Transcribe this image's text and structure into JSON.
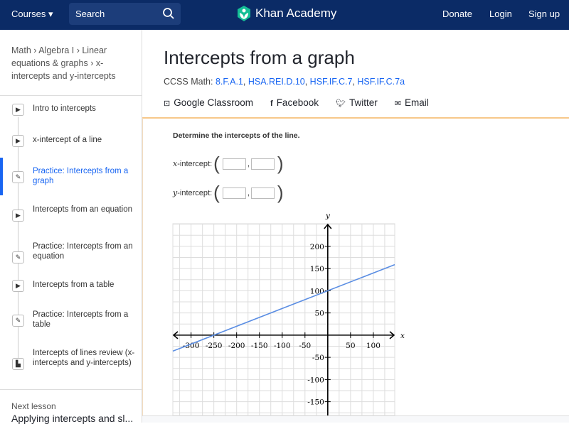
{
  "header": {
    "courses": "Courses",
    "search_placeholder": "Search",
    "logo": "Khan Academy",
    "donate": "Donate",
    "login": "Login",
    "signup": "Sign up",
    "brand_color": "#0b2b66",
    "logo_color": "#14bf96"
  },
  "breadcrumb": "Math › Algebra I › Linear equations & graphs › x-intercepts and y-intercepts",
  "sidebar": {
    "items": [
      {
        "label": "Intro to intercepts",
        "icon": "play-icon"
      },
      {
        "label": "x-intercept of a line",
        "icon": "play-icon"
      },
      {
        "label": "Practice: Intercepts from a graph",
        "icon": "pencil-icon",
        "active": true
      },
      {
        "label": "Intercepts from an equation",
        "icon": "play-icon"
      },
      {
        "label": "Practice: Intercepts from an equation",
        "icon": "pencil-icon"
      },
      {
        "label": "Intercepts from a table",
        "icon": "play-icon"
      },
      {
        "label": "Practice: Intercepts from a table",
        "icon": "pencil-icon"
      },
      {
        "label": "Intercepts of lines review (x-intercepts and y-intercepts)",
        "icon": "article-icon"
      }
    ],
    "next_label": "Next lesson",
    "next_title": "Applying intercepts and sl..."
  },
  "main": {
    "title": "Intercepts from a graph",
    "ccss_label": "CCSS Math:",
    "ccss": [
      "8.F.A.1",
      "HSA.REI.D.10",
      "HSF.IF.C.7",
      "HSF.IF.C.7a"
    ],
    "share": [
      "Google Classroom",
      "Facebook",
      "Twitter",
      "Email"
    ]
  },
  "exercise": {
    "prompt": "Determine the intercepts of the line.",
    "x_label_var": "x",
    "x_label": "-intercept:",
    "y_label_var": "y",
    "y_label": "-intercept:"
  },
  "chart_data": {
    "type": "line",
    "xlabel": "x",
    "ylabel": "y",
    "xlim": [
      -340,
      147
    ],
    "ylim": [
      -181,
      251
    ],
    "grid": true,
    "grid_step": 25,
    "xticks": [
      -300,
      -250,
      -200,
      -150,
      -100,
      -50,
      50,
      100
    ],
    "yticks": [
      200,
      150,
      100,
      50,
      -50,
      -100,
      -150
    ],
    "series": [
      {
        "x": [
          -340,
          147
        ],
        "y": [
          -36,
          158.8
        ],
        "equation_slope": 0.4,
        "equation_intercept": 100,
        "color": "#5a8de3"
      }
    ]
  }
}
